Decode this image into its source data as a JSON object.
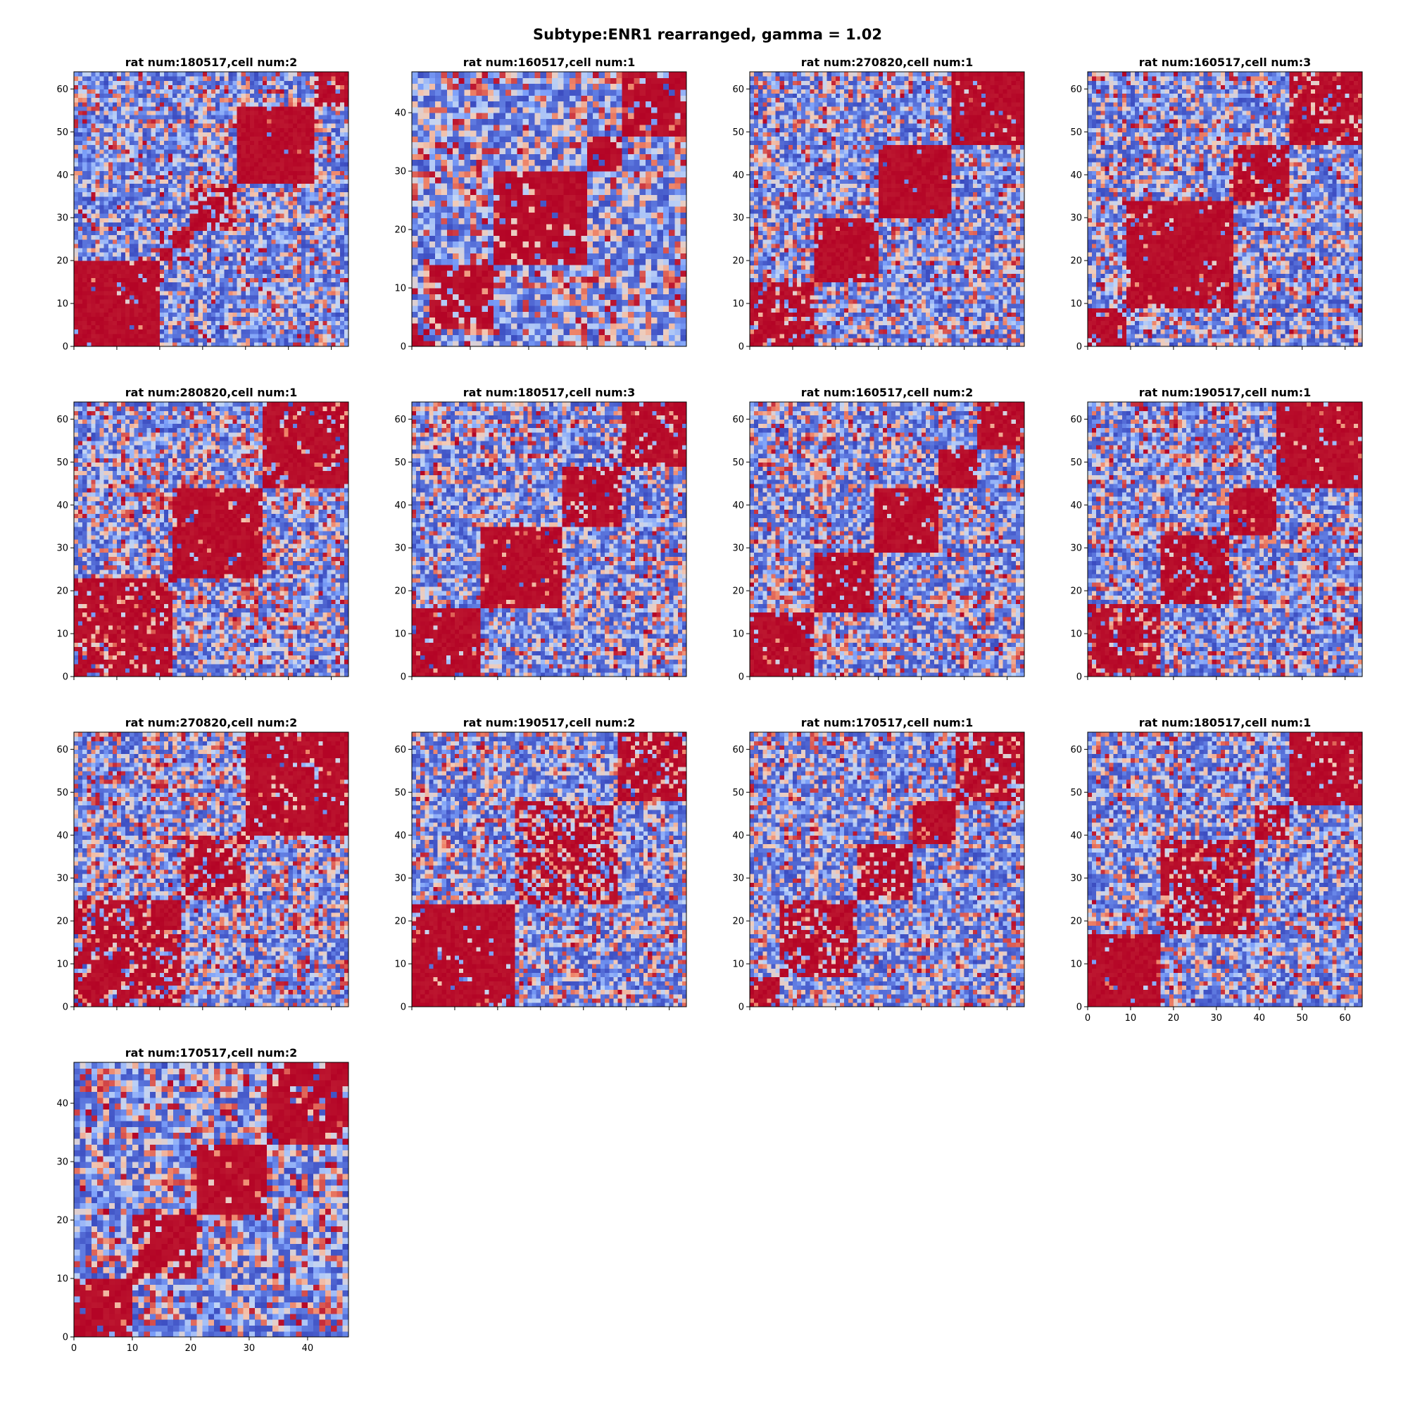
{
  "figure": {
    "title": "Subtype:ENR1 rearranged, gamma = 1.02",
    "colormap": "coolwarm",
    "colormap_stops": [
      "#3b4cc0",
      "#7b9ff9",
      "#c0d4f5",
      "#f2cbb7",
      "#ee8468",
      "#b40426"
    ]
  },
  "chart_data": [
    {
      "type": "heatmap",
      "title": "rat num:180517,cell num:2",
      "n": 64,
      "xlim": [
        0,
        64
      ],
      "ylim": [
        0,
        64
      ],
      "yticks": [
        "0",
        "10",
        "20",
        "30",
        "40",
        "50",
        "60"
      ],
      "xticks_labeled": false,
      "seed": 11,
      "blocks": [
        [
          0,
          20,
          0.97
        ],
        [
          20,
          27,
          0.6
        ],
        [
          27,
          38,
          0.65
        ],
        [
          38,
          56,
          0.96
        ],
        [
          56,
          64,
          0.7
        ]
      ]
    },
    {
      "type": "heatmap",
      "title": "rat num:160517,cell num:1",
      "n": 47,
      "xlim": [
        0,
        47
      ],
      "ylim": [
        0,
        47
      ],
      "yticks": [
        "0",
        "10",
        "20",
        "30",
        "40"
      ],
      "xticks_labeled": false,
      "seed": 23,
      "blocks": [
        [
          0,
          3,
          0.55
        ],
        [
          3,
          14,
          0.85
        ],
        [
          14,
          30,
          0.88
        ],
        [
          30,
          36,
          0.8
        ],
        [
          36,
          47,
          0.82
        ]
      ]
    },
    {
      "type": "heatmap",
      "title": "rat num:270820,cell num:1",
      "n": 64,
      "xlim": [
        0,
        64
      ],
      "ylim": [
        0,
        64
      ],
      "yticks": [
        "0",
        "10",
        "20",
        "30",
        "40",
        "50",
        "60"
      ],
      "xticks_labeled": false,
      "seed": 37,
      "blocks": [
        [
          0,
          15,
          0.82
        ],
        [
          15,
          30,
          0.92
        ],
        [
          30,
          47,
          0.94
        ],
        [
          47,
          64,
          0.9
        ]
      ]
    },
    {
      "type": "heatmap",
      "title": "rat num:160517,cell num:3",
      "n": 64,
      "xlim": [
        0,
        64
      ],
      "ylim": [
        0,
        64
      ],
      "yticks": [
        "0",
        "10",
        "20",
        "30",
        "40",
        "50",
        "60"
      ],
      "xticks_labeled": false,
      "seed": 41,
      "blocks": [
        [
          0,
          9,
          0.85
        ],
        [
          9,
          34,
          0.9
        ],
        [
          34,
          47,
          0.85
        ],
        [
          47,
          64,
          0.85
        ]
      ]
    },
    {
      "type": "heatmap",
      "title": "rat num:280820,cell num:1",
      "n": 64,
      "xlim": [
        0,
        64
      ],
      "ylim": [
        0,
        64
      ],
      "yticks": [
        "0",
        "10",
        "20",
        "30",
        "40",
        "50",
        "60"
      ],
      "xticks_labeled": false,
      "seed": 53,
      "blocks": [
        [
          0,
          23,
          0.8
        ],
        [
          23,
          44,
          0.92
        ],
        [
          44,
          64,
          0.85
        ]
      ]
    },
    {
      "type": "heatmap",
      "title": "rat num:180517,cell num:3",
      "n": 64,
      "xlim": [
        0,
        64
      ],
      "ylim": [
        0,
        64
      ],
      "yticks": [
        "0",
        "10",
        "20",
        "30",
        "40",
        "50",
        "60"
      ],
      "xticks_labeled": false,
      "seed": 67,
      "blocks": [
        [
          0,
          16,
          0.85
        ],
        [
          16,
          35,
          0.9
        ],
        [
          35,
          49,
          0.9
        ],
        [
          49,
          64,
          0.82
        ]
      ]
    },
    {
      "type": "heatmap",
      "title": "rat num:160517,cell num:2",
      "n": 64,
      "xlim": [
        0,
        64
      ],
      "ylim": [
        0,
        64
      ],
      "yticks": [
        "0",
        "10",
        "20",
        "30",
        "40",
        "50",
        "60"
      ],
      "xticks_labeled": false,
      "seed": 71,
      "blocks": [
        [
          0,
          15,
          0.88
        ],
        [
          15,
          29,
          0.93
        ],
        [
          29,
          44,
          0.94
        ],
        [
          44,
          53,
          0.9
        ],
        [
          53,
          64,
          0.86
        ]
      ]
    },
    {
      "type": "heatmap",
      "title": "rat num:190517,cell num:1",
      "n": 64,
      "xlim": [
        0,
        64
      ],
      "ylim": [
        0,
        64
      ],
      "yticks": [
        "0",
        "10",
        "20",
        "30",
        "40",
        "50",
        "60"
      ],
      "xticks_labeled": false,
      "seed": 83,
      "blocks": [
        [
          0,
          17,
          0.72
        ],
        [
          17,
          33,
          0.82
        ],
        [
          33,
          44,
          0.92
        ],
        [
          44,
          64,
          0.9
        ]
      ]
    },
    {
      "type": "heatmap",
      "title": "rat num:270820,cell num:2",
      "n": 64,
      "xlim": [
        0,
        64
      ],
      "ylim": [
        0,
        64
      ],
      "yticks": [
        "0",
        "10",
        "20",
        "30",
        "40",
        "50",
        "60"
      ],
      "xticks_labeled": false,
      "seed": 97,
      "blocks": [
        [
          0,
          25,
          0.72
        ],
        [
          25,
          40,
          0.62
        ],
        [
          40,
          64,
          0.93
        ]
      ]
    },
    {
      "type": "heatmap",
      "title": "rat num:190517,cell num:2",
      "n": 64,
      "xlim": [
        0,
        64
      ],
      "ylim": [
        0,
        64
      ],
      "yticks": [
        "0",
        "10",
        "20",
        "30",
        "40",
        "50",
        "60"
      ],
      "xticks_labeled": false,
      "seed": 101,
      "blocks": [
        [
          0,
          24,
          0.93
        ],
        [
          24,
          48,
          0.6
        ],
        [
          48,
          64,
          0.78
        ]
      ]
    },
    {
      "type": "heatmap",
      "title": "rat num:170517,cell num:1",
      "n": 64,
      "xlim": [
        0,
        64
      ],
      "ylim": [
        0,
        64
      ],
      "yticks": [
        "0",
        "10",
        "20",
        "30",
        "40",
        "50",
        "60"
      ],
      "xticks_labeled": false,
      "seed": 113,
      "blocks": [
        [
          0,
          7,
          0.88
        ],
        [
          7,
          25,
          0.72
        ],
        [
          25,
          38,
          0.7
        ],
        [
          38,
          48,
          0.85
        ],
        [
          48,
          64,
          0.75
        ]
      ]
    },
    {
      "type": "heatmap",
      "title": "rat num:180517,cell num:1",
      "n": 64,
      "xlim": [
        0,
        64
      ],
      "ylim": [
        0,
        64
      ],
      "yticks": [
        "0",
        "10",
        "20",
        "30",
        "40",
        "50",
        "60"
      ],
      "xticks": [
        "0",
        "10",
        "20",
        "30",
        "40",
        "50",
        "60"
      ],
      "xticks_labeled": true,
      "seed": 127,
      "blocks": [
        [
          0,
          17,
          0.95
        ],
        [
          17,
          39,
          0.7
        ],
        [
          39,
          47,
          0.7
        ],
        [
          47,
          64,
          0.9
        ]
      ]
    },
    {
      "type": "heatmap",
      "title": "rat num:170517,cell num:2",
      "n": 47,
      "xlim": [
        0,
        47
      ],
      "ylim": [
        0,
        47
      ],
      "yticks": [
        "0",
        "10",
        "20",
        "30",
        "40"
      ],
      "xticks": [
        "0",
        "10",
        "20",
        "30",
        "40"
      ],
      "xticks_labeled": true,
      "seed": 131,
      "blocks": [
        [
          0,
          10,
          0.92
        ],
        [
          10,
          21,
          0.86
        ],
        [
          21,
          33,
          0.82
        ],
        [
          33,
          47,
          0.86
        ]
      ]
    }
  ]
}
